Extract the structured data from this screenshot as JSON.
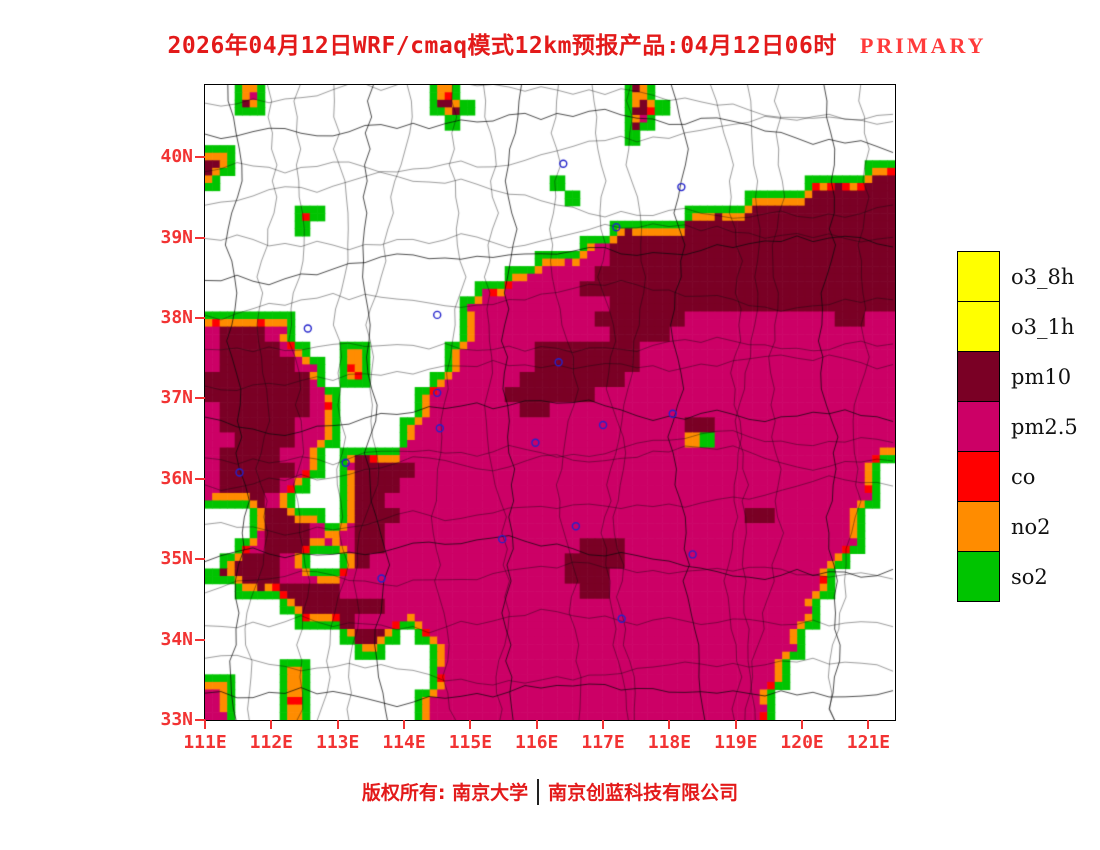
{
  "title": {
    "text": "2026年04月12日WRF/cmaq模式12km预报产品:04月12日06时",
    "highlight": "PRIMARY"
  },
  "footer": {
    "left": "版权所有: 南京大学",
    "divider": "│",
    "right": "南京创蓝科技有限公司"
  },
  "legend": {
    "items": [
      {
        "label": "o3_8h",
        "color": "#FFFF00"
      },
      {
        "label": "o3_1h",
        "color": "#FFFF00"
      },
      {
        "label": "pm10",
        "color": "#7A0025"
      },
      {
        "label": "pm2.5",
        "color": "#CC0066"
      },
      {
        "label": "co",
        "color": "#FF0000"
      },
      {
        "label": "no2",
        "color": "#FF8C00"
      },
      {
        "label": "so2",
        "color": "#00C400"
      }
    ]
  },
  "axes": {
    "lat": [
      {
        "label": "40N",
        "value": 40
      },
      {
        "label": "39N",
        "value": 39
      },
      {
        "label": "38N",
        "value": 38
      },
      {
        "label": "37N",
        "value": 37
      },
      {
        "label": "36N",
        "value": 36
      },
      {
        "label": "35N",
        "value": 35
      },
      {
        "label": "34N",
        "value": 34
      },
      {
        "label": "33N",
        "value": 33
      }
    ],
    "lon": [
      {
        "label": "111E",
        "value": 111
      },
      {
        "label": "112E",
        "value": 112
      },
      {
        "label": "113E",
        "value": 113
      },
      {
        "label": "114E",
        "value": 114
      },
      {
        "label": "115E",
        "value": 115
      },
      {
        "label": "116E",
        "value": 116
      },
      {
        "label": "117E",
        "value": 117
      },
      {
        "label": "118E",
        "value": 118
      },
      {
        "label": "119E",
        "value": 119
      },
      {
        "label": "120E",
        "value": 120
      },
      {
        "label": "121E",
        "value": 121
      }
    ]
  },
  "colors": {
    "axis": "#F23333",
    "title": "#E31A1A",
    "highlight": "#FF3B3B",
    "footer": "#E31A1A",
    "boundary": "rgba(10,10,10,0.8)"
  },
  "map": {
    "bounds": {
      "lon_min": 111,
      "lon_max": 121.4,
      "lat_min": 33.0,
      "lat_max": 40.9
    },
    "marker_color": "#2323CC",
    "palette": {
      "p": "#CC0066",
      "d": "#7A0025",
      "g": "#00C400",
      "o": "#FF8C00",
      "r": "#FF0000",
      "y": "#FFFF00"
    },
    "markers": [
      {
        "lon": 116.4,
        "lat": 39.92
      },
      {
        "lon": 117.2,
        "lat": 39.13
      },
      {
        "lon": 118.18,
        "lat": 39.63
      },
      {
        "lon": 114.5,
        "lat": 38.04
      },
      {
        "lon": 112.55,
        "lat": 37.87
      },
      {
        "lon": 116.33,
        "lat": 37.45
      },
      {
        "lon": 114.5,
        "lat": 37.07
      },
      {
        "lon": 114.54,
        "lat": 36.63
      },
      {
        "lon": 115.98,
        "lat": 36.45
      },
      {
        "lon": 117.0,
        "lat": 36.67
      },
      {
        "lon": 118.05,
        "lat": 36.81
      },
      {
        "lon": 113.12,
        "lat": 36.2
      },
      {
        "lon": 111.52,
        "lat": 36.08
      },
      {
        "lon": 113.66,
        "lat": 34.76
      },
      {
        "lon": 116.59,
        "lat": 35.41
      },
      {
        "lon": 115.48,
        "lat": 35.25
      },
      {
        "lon": 118.35,
        "lat": 35.06
      },
      {
        "lon": 117.28,
        "lat": 34.26
      }
    ],
    "grid": [
      "..dp...........dp...........dd................",
      "..dp...........ddp..........ddp...............",
      "................p...........dp................",
      "............................p.................",
      "pp............................................",
      "dp..........................................dd",
      "p......................p................dddddd",
      "........................p...........dddddddddd",
      "......pp........................dddddddddddddd",
      "......p....................pdddddddddddddddddd",
      ".........................ppddddddddddddddddddd",
      "......................pppppddddddddddddddddddd",
      "....................ppppppdddddddddddddddddddd",
      "..................pppppppddddddddddddddddddddd",
      ".................ppppppppppddddddddddddddddddd",
      "ppdddp...........pppppppppddddddppppppppppddpp",
      "pdddpp...........ppppppppppddddppppppppppppppp",
      "pddddpp..pp.....ppppppdddddddppppppppppppppppp",
      "pdddddpp.pd.....ppppppdddddddppppppppppppppppp",
      "dddddddp.pp....ppppppdddddddpppppppppppppppppp",
      "dddddddpp.....ppppppddddddpppppppppppppppppppp",
      "pddddddpp.....pppppppddppppppppppppppppppppppp",
      "pdddddppp....pppppppppppppppppppddpppppppppppp",
      "ppddddppp....pppppppppppppppppppogpppppppppppp",
      "pddddppp.pdddppppppppppppppppppppppppppppppppp",
      "pdddddpp.pddddppppppppppppppppppppppppppppppp.",
      "pddddpp..pdddpppppppppppppppppppppppppppppppp.",
      "ppddpp...pddppppppppppppppppppppppppppppppppp.",
      "...pddpp.pdddpppppppppppppppppppppppddpppppp..",
      "...pdddpppddpppppppppppppppppppppppppppppppp..",
      "..ppdddpppddpppppppppppppdddpppppppppppppppp...",
      ".pdddpp..pdpppppppppppppddddppppppppppppppp...",
      "pddddpppppppppppppppppppdddppppppppppppppp....",
      "..pddddddppppppppppppppppddppppppppppppppp....",
      ".....pddddddppppppppppppppppppppppppppppp.....",
      "......pdddppppppppppppppppppppppppppppppp.....",
      ".........pddp.pppppppppppppppppppppppppp......",
      "..........pp...ppppppppppppppppppppppppp......",
      ".....pp........pppppppppppppppppppppppp.......",
      "pp...pp........pppppppppppppppppppppppp.......",
      "pp...pp.......pppppppppppppppppppppppp........",
      "pp...pp.......pppppppppppppppppppppppp........"
    ]
  }
}
